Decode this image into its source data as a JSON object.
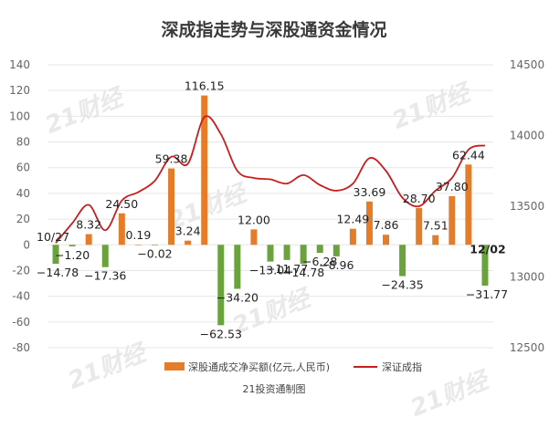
{
  "chart_data": {
    "type": "bar+line",
    "title": "深成指走势与深股通资金情况",
    "source": "21投资通制图",
    "watermark": "21财经",
    "colors": {
      "bar_positive": "#e57c2a",
      "bar_negative": "#6aa33c",
      "line": "#c81d1d"
    },
    "y_left": {
      "min": -80,
      "max": 140,
      "step": 20,
      "ticks": [
        "-80",
        "-60",
        "-40",
        "-20",
        "0",
        "20",
        "40",
        "60",
        "80",
        "100",
        "120",
        "140"
      ]
    },
    "y_right": {
      "min": 12500,
      "max": 14500,
      "step": 500,
      "ticks": [
        "12500",
        "13000",
        "13500",
        "14000",
        "14500"
      ]
    },
    "start_date_label": "10/27",
    "end_date_label": "12/02",
    "series": [
      {
        "name": "深股通成交净买额(亿元,人民币)",
        "type": "bar",
        "values": [
          -14.78,
          -1.2,
          8.32,
          -17.36,
          24.5,
          0.19,
          -0.02,
          59.38,
          3.24,
          116.15,
          -62.53,
          -34.2,
          12.0,
          -13.04,
          -11.77,
          -14.78,
          -6.28,
          -8.96,
          12.49,
          33.69,
          7.86,
          -24.35,
          28.7,
          7.51,
          37.8,
          62.44,
          -31.77
        ],
        "labels": [
          "−14.78",
          "−1.20",
          "8.32",
          "−17.36",
          "24.50",
          "0.19",
          "−0.02",
          "59.38",
          "3.24",
          "116.15",
          "−62.53",
          "−34.20",
          "12.00",
          "−13.04",
          "−11.77",
          "−14.78",
          "−6.28",
          "−8.96",
          "12.49",
          "33.69",
          "7.86",
          "−24.35",
          "28.70",
          "7.51",
          "37.80",
          "62.44",
          "−31.77"
        ]
      },
      {
        "name": "深证成指",
        "type": "line",
        "values": [
          13240,
          13380,
          13510,
          13330,
          13540,
          13600,
          13680,
          13850,
          13800,
          14130,
          14010,
          13750,
          13700,
          13690,
          13660,
          13720,
          13650,
          13610,
          13660,
          13840,
          13750,
          13560,
          13500,
          13610,
          13700,
          13900,
          13930
        ]
      }
    ]
  }
}
